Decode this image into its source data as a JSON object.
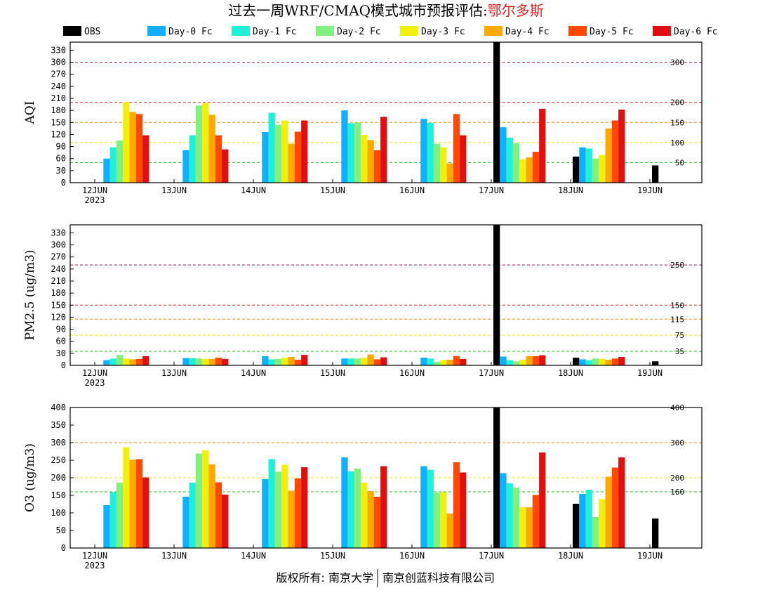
{
  "title": {
    "prefix": "过去一周WRF/CMAQ模式城市预报评估:",
    "city": "鄂尔多斯",
    "city_color": "#e02020"
  },
  "footer": {
    "left": "版权所有: 南京大学",
    "right": "南京创蓝科技有限公司"
  },
  "legend": {
    "items": [
      {
        "label": "OBS",
        "color": "#000000"
      },
      {
        "label": "Day-0 Fc",
        "color": "#10b0ff"
      },
      {
        "label": "Day-1 Fc",
        "color": "#20f0d8"
      },
      {
        "label": "Day-2 Fc",
        "color": "#80f080"
      },
      {
        "label": "Day-3 Fc",
        "color": "#f0f010"
      },
      {
        "label": "Day-4 Fc",
        "color": "#ffa800"
      },
      {
        "label": "Day-5 Fc",
        "color": "#ff4800"
      },
      {
        "label": "Day-6 Fc",
        "color": "#e01010"
      }
    ]
  },
  "chart_data": [
    {
      "type": "bar",
      "ylabel": "AQI",
      "ylim": [
        0,
        350
      ],
      "yticks": [
        0,
        30,
        60,
        90,
        120,
        150,
        180,
        210,
        240,
        270,
        300,
        330
      ],
      "categories": [
        "12JUN",
        "13JUN",
        "14JUN",
        "15JUN",
        "16JUN",
        "17JUN",
        "18JUN",
        "19JUN"
      ],
      "first_category_year": "2023",
      "thresholds": [
        {
          "value": 50,
          "label": "50",
          "color": "#20c020"
        },
        {
          "value": 100,
          "label": "100",
          "color": "#e8e800"
        },
        {
          "value": 150,
          "label": "150",
          "color": "#f09000"
        },
        {
          "value": 200,
          "label": "200",
          "color": "#e02020"
        },
        {
          "value": 300,
          "label": "300",
          "color": "#a01040"
        }
      ],
      "series": [
        {
          "name": "OBS",
          "values": [
            null,
            null,
            null,
            null,
            null,
            350,
            65,
            43
          ]
        },
        {
          "name": "Day-0 Fc",
          "values": [
            60,
            81,
            126,
            180,
            159,
            138,
            88,
            null
          ]
        },
        {
          "name": "Day-1 Fc",
          "values": [
            88,
            118,
            174,
            148,
            149,
            112,
            85,
            null
          ]
        },
        {
          "name": "Day-2 Fc",
          "values": [
            105,
            192,
            144,
            150,
            97,
            98,
            60,
            null
          ]
        },
        {
          "name": "Day-3 Fc",
          "values": [
            201,
            198,
            155,
            119,
            88,
            58,
            69,
            null
          ]
        },
        {
          "name": "Day-4 Fc",
          "values": [
            176,
            169,
            97,
            106,
            48,
            63,
            135,
            null
          ]
        },
        {
          "name": "Day-5 Fc",
          "values": [
            171,
            118,
            127,
            81,
            171,
            77,
            155,
            null
          ]
        },
        {
          "name": "Day-6 Fc",
          "values": [
            118,
            83,
            155,
            164,
            118,
            184,
            182,
            null
          ]
        }
      ]
    },
    {
      "type": "bar",
      "ylabel": "PM2.5 (ug/m3)",
      "ylim": [
        0,
        350
      ],
      "yticks": [
        0,
        30,
        60,
        90,
        120,
        150,
        180,
        210,
        240,
        270,
        300,
        330
      ],
      "categories": [
        "12JUN",
        "13JUN",
        "14JUN",
        "15JUN",
        "16JUN",
        "17JUN",
        "18JUN",
        "19JUN"
      ],
      "first_category_year": "2023",
      "thresholds": [
        {
          "value": 35,
          "label": "35",
          "color": "#20c020"
        },
        {
          "value": 75,
          "label": "75",
          "color": "#e8e800"
        },
        {
          "value": 115,
          "label": "115",
          "color": "#f09000"
        },
        {
          "value": 150,
          "label": "150",
          "color": "#e02020"
        },
        {
          "value": 250,
          "label": "250",
          "color": "#a01040"
        }
      ],
      "series": [
        {
          "name": "OBS",
          "values": [
            null,
            null,
            null,
            null,
            null,
            350,
            19,
            10
          ]
        },
        {
          "name": "Day-0 Fc",
          "values": [
            13,
            18,
            23,
            17,
            19,
            22,
            15,
            null
          ]
        },
        {
          "name": "Day-1 Fc",
          "values": [
            17,
            18,
            15,
            17,
            17,
            13,
            13,
            null
          ]
        },
        {
          "name": "Day-2 Fc",
          "values": [
            26,
            17,
            16,
            17,
            9,
            10,
            17,
            null
          ]
        },
        {
          "name": "Day-3 Fc",
          "values": [
            17,
            16,
            19,
            19,
            13,
            14,
            16,
            null
          ]
        },
        {
          "name": "Day-4 Fc",
          "values": [
            15,
            16,
            21,
            27,
            14,
            23,
            14,
            null
          ]
        },
        {
          "name": "Day-5 Fc",
          "values": [
            16,
            19,
            14,
            15,
            23,
            23,
            17,
            null
          ]
        },
        {
          "name": "Day-6 Fc",
          "values": [
            23,
            16,
            26,
            20,
            16,
            25,
            21,
            null
          ]
        }
      ]
    },
    {
      "type": "bar",
      "ylabel": "O3 (ug/m3)",
      "ylim": [
        0,
        400
      ],
      "yticks": [
        0,
        50,
        100,
        150,
        200,
        250,
        300,
        350,
        400
      ],
      "categories": [
        "12JUN",
        "13JUN",
        "14JUN",
        "15JUN",
        "16JUN",
        "17JUN",
        "18JUN",
        "19JUN"
      ],
      "first_category_year": "2023",
      "thresholds": [
        {
          "value": 160,
          "label": "160",
          "color": "#20c020"
        },
        {
          "value": 200,
          "label": "200",
          "color": "#e8e800"
        },
        {
          "value": 300,
          "label": "300",
          "color": "#f09000"
        },
        {
          "value": 400,
          "label": "400",
          "color": "#e02020"
        }
      ],
      "series": [
        {
          "name": "OBS",
          "values": [
            null,
            null,
            null,
            null,
            null,
            400,
            126,
            84
          ]
        },
        {
          "name": "Day-0 Fc",
          "values": [
            122,
            146,
            196,
            258,
            233,
            213,
            154,
            null
          ]
        },
        {
          "name": "Day-1 Fc",
          "values": [
            159,
            186,
            253,
            218,
            223,
            184,
            166,
            null
          ]
        },
        {
          "name": "Day-2 Fc",
          "values": [
            186,
            269,
            217,
            226,
            157,
            172,
            88,
            null
          ]
        },
        {
          "name": "Day-3 Fc",
          "values": [
            287,
            278,
            237,
            186,
            159,
            116,
            139,
            null
          ]
        },
        {
          "name": "Day-4 Fc",
          "values": [
            251,
            238,
            163,
            162,
            98,
            116,
            203,
            null
          ]
        },
        {
          "name": "Day-5 Fc",
          "values": [
            253,
            187,
            198,
            146,
            244,
            151,
            229,
            null
          ]
        },
        {
          "name": "Day-6 Fc",
          "values": [
            201,
            152,
            230,
            233,
            215,
            272,
            258,
            null
          ]
        }
      ]
    }
  ]
}
